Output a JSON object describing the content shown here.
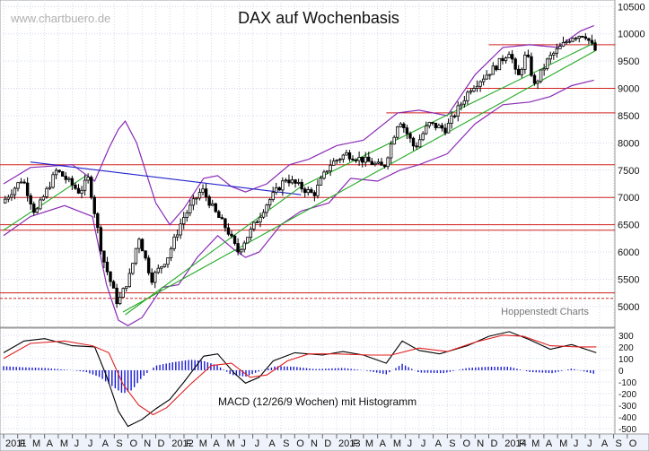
{
  "chart_data": [
    {
      "type": "candlestick",
      "title": "DAX auf Wochenbasis",
      "watermark": "www.chartbuero.de",
      "source_label": "Hoppenstedt Charts",
      "y_ticks": [
        5000,
        5500,
        6000,
        6500,
        7000,
        7500,
        8000,
        8500,
        9000,
        9500,
        10000,
        10500
      ],
      "y_range": [
        4620,
        10620
      ],
      "x_range": [
        "2011-01-01",
        "2014-10-31"
      ],
      "x_tick_labels": [
        {
          "label": "2011",
          "date": "2011-01-01"
        },
        {
          "label": "F",
          "date": "2011-02-01"
        },
        {
          "label": "M",
          "date": "2011-03-01"
        },
        {
          "label": "A",
          "date": "2011-04-01"
        },
        {
          "label": "M",
          "date": "2011-05-01"
        },
        {
          "label": "J",
          "date": "2011-06-01"
        },
        {
          "label": "J",
          "date": "2011-07-01"
        },
        {
          "label": "A",
          "date": "2011-08-01"
        },
        {
          "label": "S",
          "date": "2011-09-01"
        },
        {
          "label": "O",
          "date": "2011-10-01"
        },
        {
          "label": "N",
          "date": "2011-11-01"
        },
        {
          "label": "D",
          "date": "2011-12-01"
        },
        {
          "label": "2012",
          "date": "2012-01-01"
        },
        {
          "label": "F",
          "date": "2012-02-01"
        },
        {
          "label": "M",
          "date": "2012-03-01"
        },
        {
          "label": "A",
          "date": "2012-04-01"
        },
        {
          "label": "M",
          "date": "2012-05-01"
        },
        {
          "label": "J",
          "date": "2012-06-01"
        },
        {
          "label": "J",
          "date": "2012-07-01"
        },
        {
          "label": "A",
          "date": "2012-08-01"
        },
        {
          "label": "S",
          "date": "2012-09-01"
        },
        {
          "label": "O",
          "date": "2012-10-01"
        },
        {
          "label": "N",
          "date": "2012-11-01"
        },
        {
          "label": "D",
          "date": "2012-12-01"
        },
        {
          "label": "2013",
          "date": "2013-01-01"
        },
        {
          "label": "F",
          "date": "2013-02-01"
        },
        {
          "label": "M",
          "date": "2013-03-01"
        },
        {
          "label": "A",
          "date": "2013-04-01"
        },
        {
          "label": "M",
          "date": "2013-05-01"
        },
        {
          "label": "J",
          "date": "2013-06-01"
        },
        {
          "label": "J",
          "date": "2013-07-01"
        },
        {
          "label": "A",
          "date": "2013-08-01"
        },
        {
          "label": "S",
          "date": "2013-09-01"
        },
        {
          "label": "O",
          "date": "2013-10-01"
        },
        {
          "label": "N",
          "date": "2013-11-01"
        },
        {
          "label": "D",
          "date": "2013-12-01"
        },
        {
          "label": "2014",
          "date": "2014-01-01"
        },
        {
          "label": "F",
          "date": "2014-02-01"
        },
        {
          "label": "M",
          "date": "2014-03-01"
        },
        {
          "label": "A",
          "date": "2014-04-01"
        },
        {
          "label": "M",
          "date": "2014-05-01"
        },
        {
          "label": "J",
          "date": "2014-06-01"
        },
        {
          "label": "J",
          "date": "2014-07-01"
        },
        {
          "label": "A",
          "date": "2014-08-01"
        },
        {
          "label": "S",
          "date": "2014-09-01"
        },
        {
          "label": "O",
          "date": "2014-10-01"
        }
      ],
      "price_path": [
        [
          "2011-01-01",
          6900
        ],
        [
          "2011-02-15",
          7350
        ],
        [
          "2011-03-15",
          6700
        ],
        [
          "2011-05-01",
          7500
        ],
        [
          "2011-06-20",
          7100
        ],
        [
          "2011-07-10",
          7350
        ],
        [
          "2011-08-10",
          5900
        ],
        [
          "2011-09-12",
          5050
        ],
        [
          "2011-10-10",
          5600
        ],
        [
          "2011-10-28",
          6300
        ],
        [
          "2011-11-25",
          5500
        ],
        [
          "2011-12-30",
          5900
        ],
        [
          "2012-02-01",
          6600
        ],
        [
          "2012-03-15",
          7150
        ],
        [
          "2012-04-15",
          6700
        ],
        [
          "2012-05-10",
          6400
        ],
        [
          "2012-06-01",
          6000
        ],
        [
          "2012-07-01",
          6400
        ],
        [
          "2012-08-01",
          6850
        ],
        [
          "2012-09-15",
          7350
        ],
        [
          "2012-11-15",
          7050
        ],
        [
          "2012-12-20",
          7600
        ],
        [
          "2013-01-25",
          7800
        ],
        [
          "2013-04-18",
          7550
        ],
        [
          "2013-05-22",
          8450
        ],
        [
          "2013-06-25",
          7900
        ],
        [
          "2013-07-25",
          8350
        ],
        [
          "2013-09-01",
          8250
        ],
        [
          "2013-10-25",
          9000
        ],
        [
          "2013-12-20",
          9400
        ],
        [
          "2014-01-20",
          9700
        ],
        [
          "2014-02-05",
          9150
        ],
        [
          "2014-02-25",
          9650
        ],
        [
          "2014-03-15",
          9050
        ],
        [
          "2014-04-15",
          9550
        ],
        [
          "2014-06-05",
          9950
        ],
        [
          "2014-07-03",
          10000
        ],
        [
          "2014-07-25",
          9700
        ]
      ],
      "bollinger": {
        "upper": [
          [
            "2011-01-01",
            7250
          ],
          [
            "2011-03-01",
            7550
          ],
          [
            "2011-06-01",
            7600
          ],
          [
            "2011-07-20",
            7300
          ],
          [
            "2011-08-20",
            7900
          ],
          [
            "2011-09-10",
            8250
          ],
          [
            "2011-09-25",
            8400
          ],
          [
            "2011-10-20",
            8000
          ],
          [
            "2011-12-01",
            6900
          ],
          [
            "2012-01-01",
            6500
          ],
          [
            "2012-02-01",
            6800
          ],
          [
            "2012-03-15",
            7350
          ],
          [
            "2012-04-15",
            7400
          ],
          [
            "2012-05-15",
            7200
          ],
          [
            "2012-06-15",
            7100
          ],
          [
            "2012-08-01",
            7250
          ],
          [
            "2012-09-20",
            7600
          ],
          [
            "2012-11-01",
            7700
          ],
          [
            "2013-01-01",
            7950
          ],
          [
            "2013-03-01",
            8050
          ],
          [
            "2013-05-15",
            8550
          ],
          [
            "2013-07-01",
            8600
          ],
          [
            "2013-09-01",
            8500
          ],
          [
            "2013-11-01",
            9250
          ],
          [
            "2014-01-01",
            9750
          ],
          [
            "2014-03-01",
            9800
          ],
          [
            "2014-05-01",
            9750
          ],
          [
            "2014-06-20",
            10050
          ],
          [
            "2014-07-20",
            10150
          ]
        ],
        "lower": [
          [
            "2011-01-01",
            6300
          ],
          [
            "2011-03-01",
            6650
          ],
          [
            "2011-05-15",
            6850
          ],
          [
            "2011-07-15",
            6650
          ],
          [
            "2011-08-15",
            5400
          ],
          [
            "2011-09-10",
            4750
          ],
          [
            "2011-10-01",
            4650
          ],
          [
            "2011-11-01",
            4800
          ],
          [
            "2011-12-15",
            5350
          ],
          [
            "2012-01-20",
            5400
          ],
          [
            "2012-03-01",
            5900
          ],
          [
            "2012-04-15",
            6300
          ],
          [
            "2012-05-20",
            6050
          ],
          [
            "2012-06-15",
            5900
          ],
          [
            "2012-07-15",
            6000
          ],
          [
            "2012-09-01",
            6500
          ],
          [
            "2012-10-15",
            6750
          ],
          [
            "2012-12-15",
            6900
          ],
          [
            "2013-02-01",
            7350
          ],
          [
            "2013-04-01",
            7300
          ],
          [
            "2013-05-20",
            7500
          ],
          [
            "2013-07-01",
            7600
          ],
          [
            "2013-09-01",
            7800
          ],
          [
            "2013-11-01",
            8350
          ],
          [
            "2014-01-01",
            8700
          ],
          [
            "2014-03-01",
            8750
          ],
          [
            "2014-04-15",
            8850
          ],
          [
            "2014-06-01",
            9050
          ],
          [
            "2014-07-20",
            9150
          ]
        ]
      },
      "horizontal_levels": [
        9800,
        9000,
        8550,
        7600,
        7000,
        6500,
        6400,
        5250,
        5150
      ],
      "trendlines": [
        {
          "color": "#2222cc",
          "points": [
            [
              "2011-03-01",
              7650
            ],
            [
              "2012-10-15",
              7050
            ]
          ]
        },
        {
          "color": "#22aa22",
          "points": [
            [
              "2011-01-01",
              6400
            ],
            [
              "2011-07-01",
              7400
            ]
          ]
        },
        {
          "color": "#22aa22",
          "points": [
            [
              "2011-09-20",
              4900
            ],
            [
              "2014-07-25",
              9700
            ]
          ]
        },
        {
          "color": "#22aa22",
          "points": [
            [
              "2011-09-25",
              4850
            ],
            [
              "2012-10-15",
              7200
            ]
          ]
        },
        {
          "color": "#22aa22",
          "points": [
            [
              "2012-10-15",
              7200
            ],
            [
              "2014-07-25",
              9850
            ]
          ]
        }
      ]
    },
    {
      "type": "macd",
      "label": "MACD (12/26/9 Wochen) mit Histogramm",
      "y_ticks": [
        300,
        200,
        100,
        0,
        -100,
        -200,
        -300,
        -400,
        -500
      ],
      "y_range": [
        -545,
        360
      ],
      "macd_line": [
        [
          "2011-01-01",
          150
        ],
        [
          "2011-02-15",
          250
        ],
        [
          "2011-04-01",
          270
        ],
        [
          "2011-06-01",
          210
        ],
        [
          "2011-07-20",
          200
        ],
        [
          "2011-08-15",
          -50
        ],
        [
          "2011-09-10",
          -350
        ],
        [
          "2011-10-01",
          -480
        ],
        [
          "2011-11-01",
          -420
        ],
        [
          "2011-12-01",
          -330
        ],
        [
          "2012-01-01",
          -250
        ],
        [
          "2012-02-01",
          -100
        ],
        [
          "2012-03-15",
          120
        ],
        [
          "2012-04-15",
          140
        ],
        [
          "2012-05-20",
          -20
        ],
        [
          "2012-06-15",
          -110
        ],
        [
          "2012-07-15",
          -60
        ],
        [
          "2012-08-15",
          80
        ],
        [
          "2012-10-01",
          150
        ],
        [
          "2012-12-01",
          130
        ],
        [
          "2013-01-15",
          160
        ],
        [
          "2013-03-01",
          130
        ],
        [
          "2013-04-20",
          60
        ],
        [
          "2013-05-25",
          250
        ],
        [
          "2013-07-01",
          170
        ],
        [
          "2013-08-15",
          140
        ],
        [
          "2013-10-15",
          210
        ],
        [
          "2013-12-01",
          290
        ],
        [
          "2014-01-15",
          330
        ],
        [
          "2014-03-01",
          260
        ],
        [
          "2014-04-15",
          180
        ],
        [
          "2014-06-01",
          220
        ],
        [
          "2014-07-25",
          150
        ]
      ],
      "signal_line": [
        [
          "2011-01-01",
          100
        ],
        [
          "2011-03-01",
          230
        ],
        [
          "2011-05-15",
          250
        ],
        [
          "2011-07-15",
          210
        ],
        [
          "2011-08-20",
          150
        ],
        [
          "2011-09-20",
          -120
        ],
        [
          "2011-10-25",
          -300
        ],
        [
          "2011-11-25",
          -380
        ],
        [
          "2011-12-25",
          -320
        ],
        [
          "2012-02-15",
          -120
        ],
        [
          "2012-04-01",
          40
        ],
        [
          "2012-05-15",
          60
        ],
        [
          "2012-06-25",
          -60
        ],
        [
          "2012-08-01",
          -40
        ],
        [
          "2012-09-15",
          80
        ],
        [
          "2012-11-01",
          140
        ],
        [
          "2013-01-01",
          140
        ],
        [
          "2013-03-15",
          130
        ],
        [
          "2013-05-01",
          130
        ],
        [
          "2013-07-01",
          190
        ],
        [
          "2013-09-01",
          160
        ],
        [
          "2013-11-01",
          240
        ],
        [
          "2014-01-01",
          300
        ],
        [
          "2014-02-15",
          290
        ],
        [
          "2014-04-15",
          210
        ],
        [
          "2014-06-15",
          200
        ],
        [
          "2014-07-25",
          200
        ]
      ],
      "histogram": [
        [
          "2011-01-01",
          35
        ],
        [
          "2011-02-15",
          25
        ],
        [
          "2011-04-01",
          20
        ],
        [
          "2011-06-01",
          0
        ],
        [
          "2011-07-01",
          -15
        ],
        [
          "2011-08-01",
          -60
        ],
        [
          "2011-08-25",
          -130
        ],
        [
          "2011-09-20",
          -200
        ],
        [
          "2011-10-10",
          -170
        ],
        [
          "2011-11-01",
          -60
        ],
        [
          "2011-12-01",
          40
        ],
        [
          "2012-01-10",
          70
        ],
        [
          "2012-02-15",
          90
        ],
        [
          "2012-03-15",
          80
        ],
        [
          "2012-04-15",
          40
        ],
        [
          "2012-05-15",
          -40
        ],
        [
          "2012-06-15",
          -55
        ],
        [
          "2012-07-15",
          -10
        ],
        [
          "2012-08-20",
          35
        ],
        [
          "2012-10-01",
          30
        ],
        [
          "2012-11-15",
          10
        ],
        [
          "2013-01-15",
          20
        ],
        [
          "2013-03-01",
          0
        ],
        [
          "2013-04-20",
          -35
        ],
        [
          "2013-05-25",
          55
        ],
        [
          "2013-07-01",
          -20
        ],
        [
          "2013-08-25",
          -25
        ],
        [
          "2013-10-15",
          20
        ],
        [
          "2013-12-01",
          30
        ],
        [
          "2014-01-15",
          30
        ],
        [
          "2014-03-01",
          -15
        ],
        [
          "2014-04-20",
          -25
        ],
        [
          "2014-06-01",
          15
        ],
        [
          "2014-07-25",
          -35
        ]
      ]
    }
  ]
}
